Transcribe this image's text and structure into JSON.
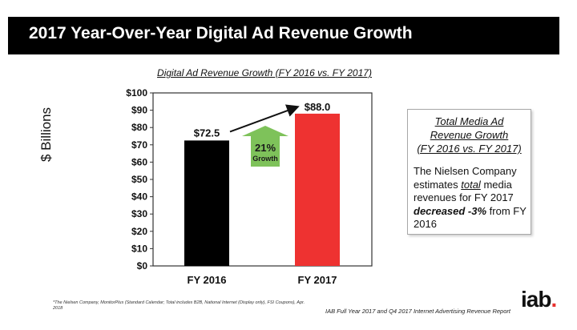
{
  "page": {
    "title": "2017 Year-Over-Year Digital Ad Revenue Growth",
    "footnote": "*The Nielsen Company, MonitorPlus (Standard Calendar; Total includes B2B, National Internet (Display only), FSI Coupons), Apr. 2018",
    "source": "IAB Full Year 2017 and Q4 2017 Internet Advertising Revenue Report",
    "logo_text": "iab",
    "logo_dot": "."
  },
  "chart_data": {
    "type": "bar",
    "title": "Digital Ad Revenue Growth (FY 2016 vs. FY 2017)",
    "ylabel": "$ Billions",
    "xlabel": "",
    "categories": [
      "FY 2016",
      "FY 2017"
    ],
    "values": [
      72.5,
      88.0
    ],
    "value_labels": [
      "$72.5",
      "$88.0"
    ],
    "colors": [
      "#000000",
      "#ee3231"
    ],
    "ylim": [
      0,
      100
    ],
    "yticks": [
      0,
      10,
      20,
      30,
      40,
      50,
      60,
      70,
      80,
      90,
      100
    ],
    "ytick_labels": [
      "$0",
      "$10",
      "$20",
      "$30",
      "$40",
      "$50",
      "$60",
      "$70",
      "$80",
      "$90",
      "$100"
    ],
    "annotation": {
      "percent": "21%",
      "label": "Growth",
      "arrow_color": "#7ec25a",
      "text_color": "#1a1a1a"
    },
    "grid": false
  },
  "info_box": {
    "title_lines": [
      "Total Media Ad",
      "Revenue Growth",
      "(FY 2016 vs. FY 2017)"
    ],
    "body_1": "The Nielsen Company estimates ",
    "body_total": "total",
    "body_2": " media revenues for FY 2017 ",
    "body_decreased": "decreased -3%",
    "body_3": " from FY 2016"
  }
}
